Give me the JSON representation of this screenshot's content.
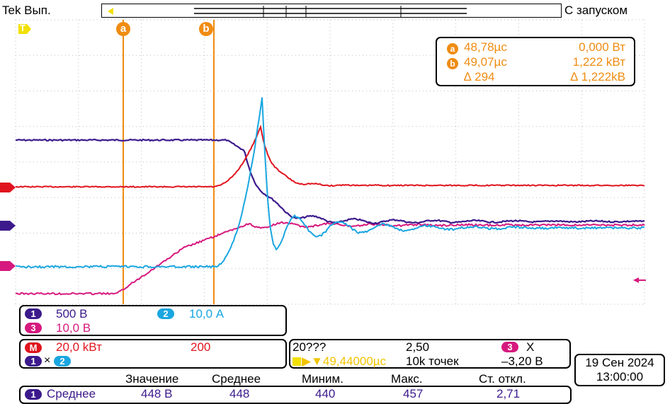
{
  "header": {
    "left": "Tek Вып.",
    "right": "С запуском"
  },
  "cursors": {
    "a_label": "a",
    "b_label": "b",
    "readout": {
      "a_time": "48,78µc",
      "a_value": "0,000 Вт",
      "b_time": "49,07µc",
      "b_value": "1,222 kВт",
      "delta_time": "∆ 294",
      "delta_value": "∆ 1,222kB"
    }
  },
  "trigger_marker": "T",
  "channels": {
    "ch1": {
      "num": "1",
      "scale": "500 В",
      "color": "#3c1a8c"
    },
    "ch2": {
      "num": "2",
      "scale": "10,0 А",
      "color": "#1aa6e0"
    },
    "ch3": {
      "num": "3",
      "scale": "10,0 В",
      "color": "#d6197e"
    },
    "math": {
      "label": "M",
      "scale": "20,0 kВт",
      "extra": "200",
      "color": "#e0141e",
      "formula_op": "×"
    }
  },
  "timebase": {
    "line1": "20???",
    "value": "2,50",
    "trig_source": "3",
    "trig_symbol": "X",
    "position": "▶▼49,44000µc",
    "points": "10k точек",
    "trig_level": "–3,20 В"
  },
  "datetime": {
    "date": "19 Сен 2024",
    "time": "13:00:00"
  },
  "measurements": {
    "headers": [
      "Значение",
      "Среднее",
      "Миним.",
      "Макс.",
      "Ст. откл."
    ],
    "row": {
      "num": "1",
      "label": "Среднее",
      "values": [
        "448 В",
        "448",
        "440",
        "457",
        "2,71"
      ]
    }
  },
  "colors": {
    "ch1": "#3c1a8c",
    "ch2": "#1aa6e0",
    "ch3": "#d6197e",
    "math": "#e0141e",
    "cursor": "#f08c12"
  }
}
